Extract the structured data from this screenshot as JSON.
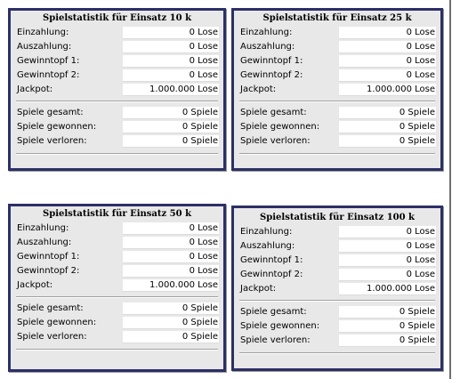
{
  "labels": {
    "einzahlung": "Einzahlung:",
    "auszahlung": "Auszahlung:",
    "gewinntopf1": "Gewinntopf 1:",
    "gewinntopf2": "Gewinntopf 2:",
    "jackpot": "Jackpot:",
    "spiele_gesamt": "Spiele gesamt:",
    "spiele_gewonnen": "Spiele gewonnen:",
    "spiele_verloren": "Spiele verloren:"
  },
  "panels": [
    {
      "title": "Spielstatistik für Einsatz 10 k",
      "einzahlung": "0 Lose",
      "auszahlung": "0 Lose",
      "gewinntopf1": "0 Lose",
      "gewinntopf2": "0 Lose",
      "jackpot": "1.000.000 Lose",
      "spiele_gesamt": "0 Spiele",
      "spiele_gewonnen": "0 Spiele",
      "spiele_verloren": "0 Spiele"
    },
    {
      "title": "Spielstatistik für Einsatz 25 k",
      "einzahlung": "0 Lose",
      "auszahlung": "0 Lose",
      "gewinntopf1": "0 Lose",
      "gewinntopf2": "0 Lose",
      "jackpot": "1.000.000 Lose",
      "spiele_gesamt": "0 Spiele",
      "spiele_gewonnen": "0 Spiele",
      "spiele_verloren": "0 Spiele"
    },
    {
      "title": "Spielstatistik für Einsatz 50 k",
      "einzahlung": "0 Lose",
      "auszahlung": "0 Lose",
      "gewinntopf1": "0 Lose",
      "gewinntopf2": "0 Lose",
      "jackpot": "1.000.000 Lose",
      "spiele_gesamt": "0 Spiele",
      "spiele_gewonnen": "0 Spiele",
      "spiele_verloren": "0 Spiele"
    },
    {
      "title": "Spielstatistik für Einsatz 100 k",
      "einzahlung": "0 Lose",
      "auszahlung": "0 Lose",
      "gewinntopf1": "0 Lose",
      "gewinntopf2": "0 Lose",
      "jackpot": "1.000.000 Lose",
      "spiele_gesamt": "0 Spiele",
      "spiele_gewonnen": "0 Spiele",
      "spiele_verloren": "0 Spiele"
    }
  ]
}
